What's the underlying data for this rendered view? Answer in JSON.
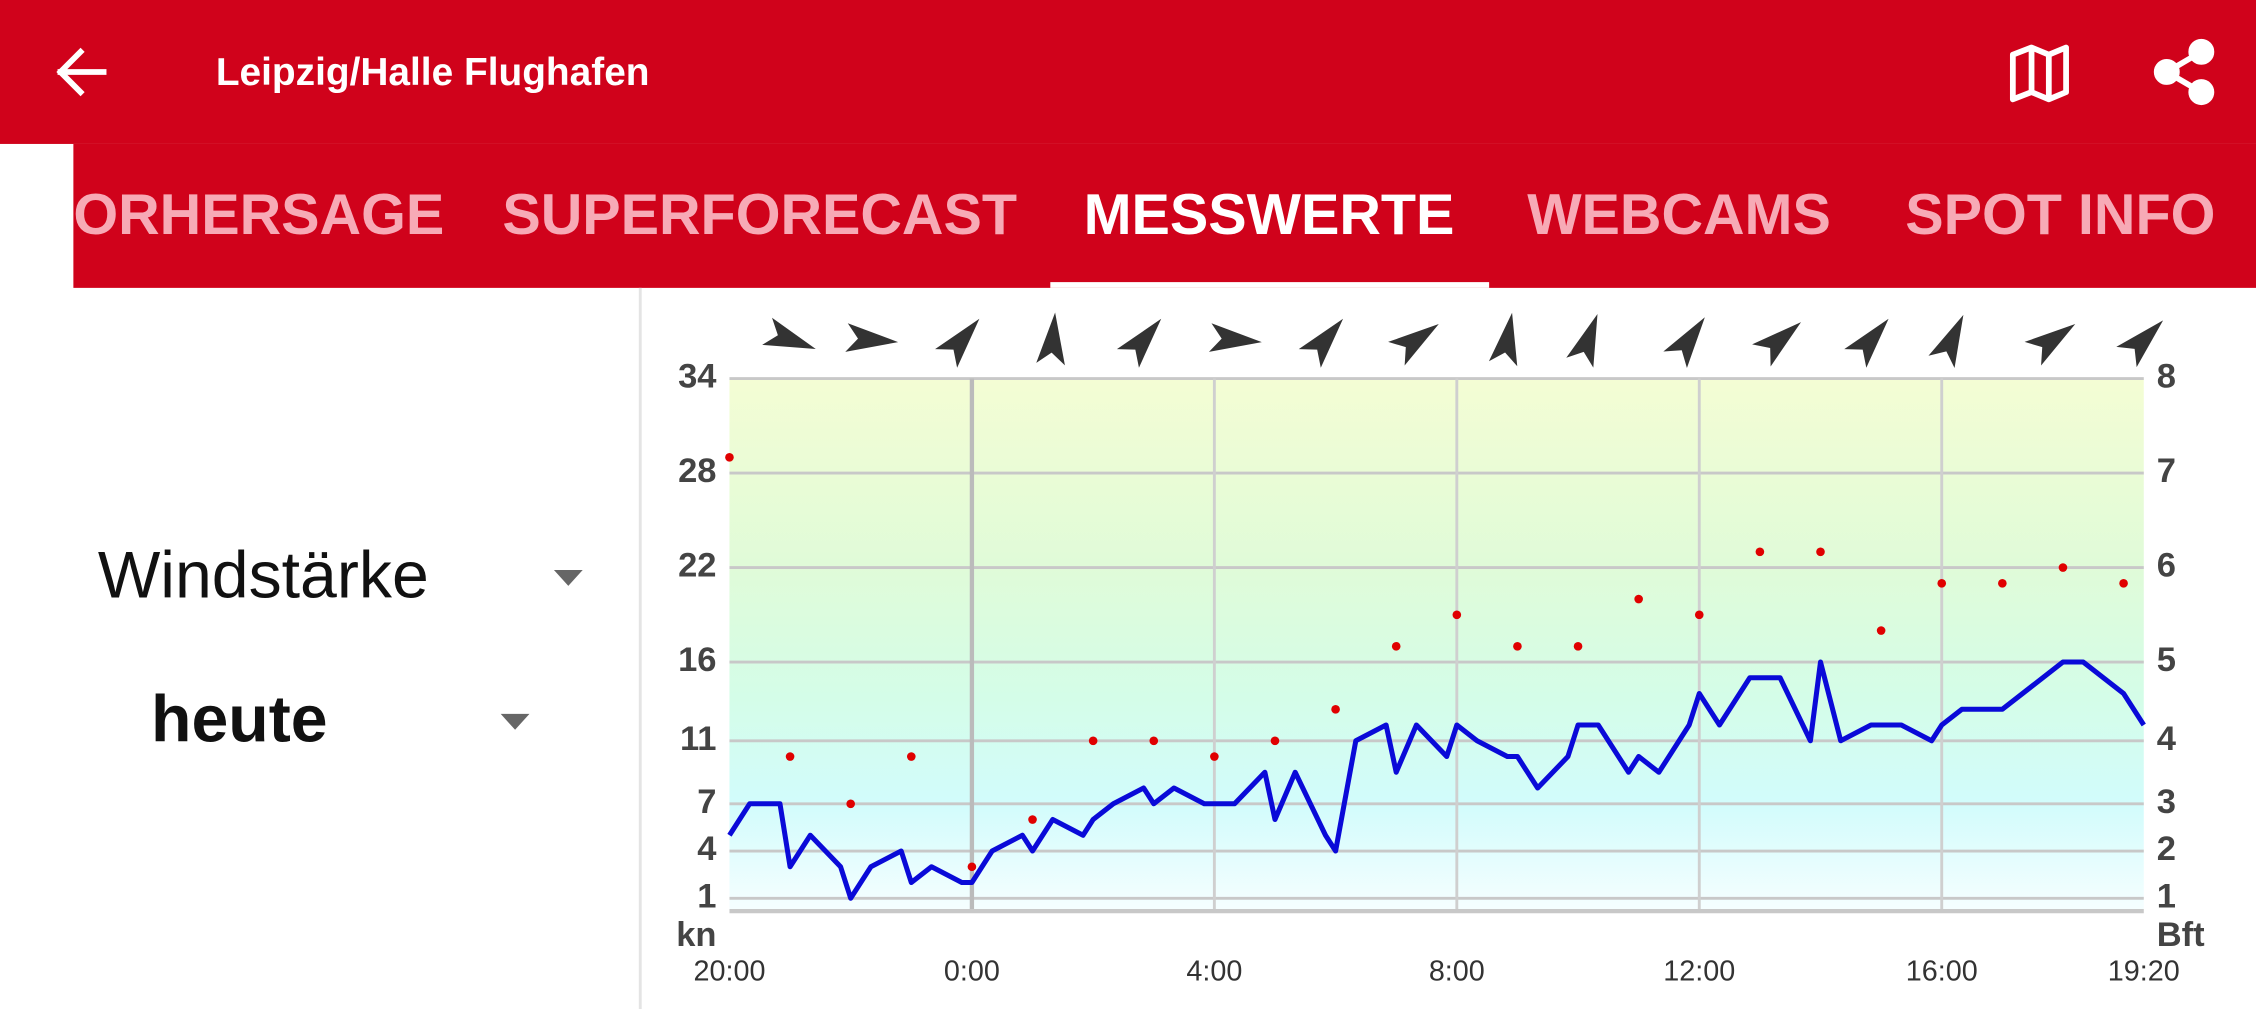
{
  "header": {
    "title": "Leipzig/Halle Flughafen"
  },
  "tabs": [
    "ORHERSAGE",
    "SUPERFORECAST",
    "MESSWERTE",
    "WEBCAMS",
    "SPOT INFO"
  ],
  "active_tab": 2,
  "selectors": {
    "measure": "Windstärke",
    "day": "heute"
  },
  "chart_data": {
    "type": "line",
    "ylabel": "kn",
    "y2label": "Bft",
    "xlim": [
      "20:00",
      "19:20"
    ],
    "xticks": [
      "20:00",
      "0:00",
      "4:00",
      "8:00",
      "12:00",
      "16:00",
      "19:20"
    ],
    "ylim": [
      0,
      34
    ],
    "yticks": [
      1,
      4,
      7,
      11,
      16,
      22,
      28,
      34
    ],
    "y2ticks": [
      1,
      2,
      3,
      4,
      5,
      6,
      7,
      8
    ],
    "grid": true,
    "series": [
      {
        "color": "#0a0ad8",
        "style": "line",
        "x": [
          "20:00",
          "20:20",
          "20:50",
          "21:00",
          "21:20",
          "21:50",
          "22:00",
          "22:20",
          "22:50",
          "23:00",
          "23:20",
          "23:50",
          "0:00",
          "0:20",
          "0:50",
          "1:00",
          "1:20",
          "1:50",
          "2:00",
          "2:20",
          "2:50",
          "3:00",
          "3:20",
          "3:50",
          "4:20",
          "4:50",
          "5:00",
          "5:20",
          "5:50",
          "6:00",
          "6:20",
          "6:50",
          "7:00",
          "7:20",
          "7:50",
          "8:00",
          "8:20",
          "8:50",
          "9:00",
          "9:20",
          "9:50",
          "10:00",
          "10:20",
          "10:50",
          "11:00",
          "11:20",
          "11:50",
          "12:00",
          "12:20",
          "12:50",
          "13:20",
          "13:50",
          "14:00",
          "14:20",
          "14:50",
          "15:20",
          "15:50",
          "16:00",
          "16:20",
          "17:00",
          "18:00",
          "18:20",
          "19:00",
          "19:20"
        ],
        "values": [
          5,
          7,
          7,
          3,
          5,
          3,
          1,
          3,
          4,
          2,
          3,
          2,
          2,
          4,
          5,
          4,
          6,
          5,
          6,
          7,
          8,
          7,
          8,
          7,
          7,
          9,
          6,
          9,
          5,
          4,
          11,
          12,
          9,
          12,
          10,
          12,
          11,
          10,
          10,
          8,
          10,
          12,
          12,
          9,
          10,
          9,
          12,
          14,
          12,
          15,
          15,
          11,
          16,
          11,
          12,
          12,
          11,
          12,
          13,
          13,
          16,
          16,
          14,
          12
        ]
      },
      {
        "color": "#e00000",
        "style": "dots",
        "x": [
          "20:00",
          "21:00",
          "22:00",
          "23:00",
          "0:00",
          "1:00",
          "2:00",
          "3:00",
          "4:00",
          "5:00",
          "6:00",
          "7:00",
          "8:00",
          "9:00",
          "10:00",
          "11:00",
          "12:00",
          "13:00",
          "14:00",
          "15:00",
          "16:00",
          "17:00",
          "18:00",
          "19:00"
        ],
        "values": [
          29,
          10,
          7,
          10,
          3,
          6,
          11,
          11,
          10,
          11,
          13,
          17,
          19,
          17,
          17,
          20,
          19,
          23,
          23,
          18,
          21,
          21,
          22,
          21
        ]
      }
    ],
    "wind_direction": {
      "color": "#333333",
      "x": [
        "21:00",
        "22:20",
        "23:50",
        "1:20",
        "2:50",
        "4:20",
        "5:50",
        "7:20",
        "8:50",
        "10:10",
        "11:50",
        "13:20",
        "14:50",
        "16:10",
        "17:50",
        "19:20"
      ],
      "values": [
        110,
        95,
        40,
        5,
        40,
        95,
        40,
        55,
        10,
        20,
        35,
        50,
        40,
        25,
        55,
        45
      ]
    }
  }
}
